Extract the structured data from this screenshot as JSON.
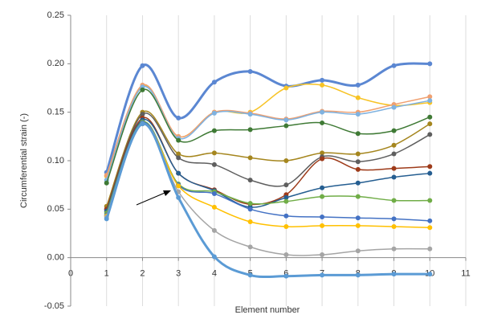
{
  "chart_data": {
    "type": "line",
    "smooth": true,
    "markers": true,
    "x_label": "Element number",
    "y_label": "Circumferential strain (-)",
    "x": [
      1,
      2,
      3,
      4,
      5,
      6,
      7,
      8,
      9,
      10
    ],
    "xlim": [
      0,
      11
    ],
    "xticks": [
      0,
      1,
      2,
      3,
      4,
      5,
      6,
      7,
      8,
      9,
      10,
      11
    ],
    "ylim": [
      -0.05,
      0.25
    ],
    "yticks": [
      {
        "value": -0.05,
        "label": "-0.05"
      },
      {
        "value": 0,
        "label": "0.00"
      },
      0.05,
      {
        "value": 0.1,
        "label": "0.10"
      },
      0.15,
      {
        "value": 0.2,
        "label": "0.20"
      },
      0.25
    ],
    "xgrid": true,
    "series": [
      {
        "color": "#5b87d2",
        "width": 3,
        "values": [
          0.088,
          0.198,
          0.144,
          0.181,
          0.192,
          0.177,
          0.183,
          0.178,
          0.198,
          0.2
        ]
      },
      {
        "color": "#f7c325",
        "width": 1.5,
        "values": [
          0.084,
          0.177,
          0.125,
          0.15,
          0.15,
          0.175,
          0.178,
          0.165,
          0.157,
          0.16
        ]
      },
      {
        "color": "#f0a070",
        "width": 1.5,
        "values": [
          0.085,
          0.178,
          0.125,
          0.15,
          0.149,
          0.143,
          0.151,
          0.15,
          0.158,
          0.166
        ]
      },
      {
        "color": "#7fb2e0",
        "width": 1.5,
        "values": [
          0.08,
          0.176,
          0.123,
          0.149,
          0.148,
          0.142,
          0.15,
          0.148,
          0.155,
          0.162
        ]
      },
      {
        "color": "#3f7a35",
        "width": 1.5,
        "values": [
          0.077,
          0.173,
          0.121,
          0.131,
          0.132,
          0.136,
          0.139,
          0.128,
          0.131,
          0.145
        ]
      },
      {
        "color": "#a5861e",
        "width": 1.5,
        "values": [
          0.053,
          0.15,
          0.107,
          0.108,
          0.103,
          0.1,
          0.108,
          0.107,
          0.116,
          0.138
        ]
      },
      {
        "color": "#5f5f5f",
        "width": 1.5,
        "values": [
          0.05,
          0.148,
          0.103,
          0.096,
          0.08,
          0.075,
          0.104,
          0.099,
          0.107,
          0.127
        ]
      },
      {
        "color": "#9e3b1a",
        "width": 1.5,
        "values": [
          0.05,
          0.144,
          0.087,
          0.07,
          0.055,
          0.065,
          0.102,
          0.091,
          0.092,
          0.094
        ]
      },
      {
        "color": "#255e91",
        "width": 1.5,
        "values": [
          0.048,
          0.142,
          0.087,
          0.069,
          0.052,
          0.062,
          0.072,
          0.077,
          0.083,
          0.087
        ]
      },
      {
        "color": "#70ad47",
        "width": 1.5,
        "values": [
          0.046,
          0.14,
          0.076,
          0.068,
          0.056,
          0.058,
          0.063,
          0.063,
          0.059,
          0.059
        ]
      },
      {
        "color": "#4472c4",
        "width": 1.5,
        "values": [
          0.044,
          0.139,
          0.075,
          0.066,
          0.05,
          0.043,
          0.042,
          0.041,
          0.04,
          0.038
        ]
      },
      {
        "color": "#ffc000",
        "width": 1.5,
        "values": [
          0.043,
          0.138,
          0.074,
          0.052,
          0.037,
          0.032,
          0.033,
          0.033,
          0.032,
          0.031
        ]
      },
      {
        "color": "#a5a5a5",
        "width": 1.5,
        "values": [
          0.042,
          0.138,
          0.068,
          0.028,
          0.011,
          0.003,
          0.003,
          0.007,
          0.009,
          0.009
        ]
      },
      {
        "color": "#5b9bd5",
        "width": 3,
        "values": [
          0.04,
          0.138,
          0.062,
          0.001,
          -0.018,
          -0.019,
          -0.018,
          -0.018,
          -0.017,
          -0.017
        ]
      }
    ]
  }
}
